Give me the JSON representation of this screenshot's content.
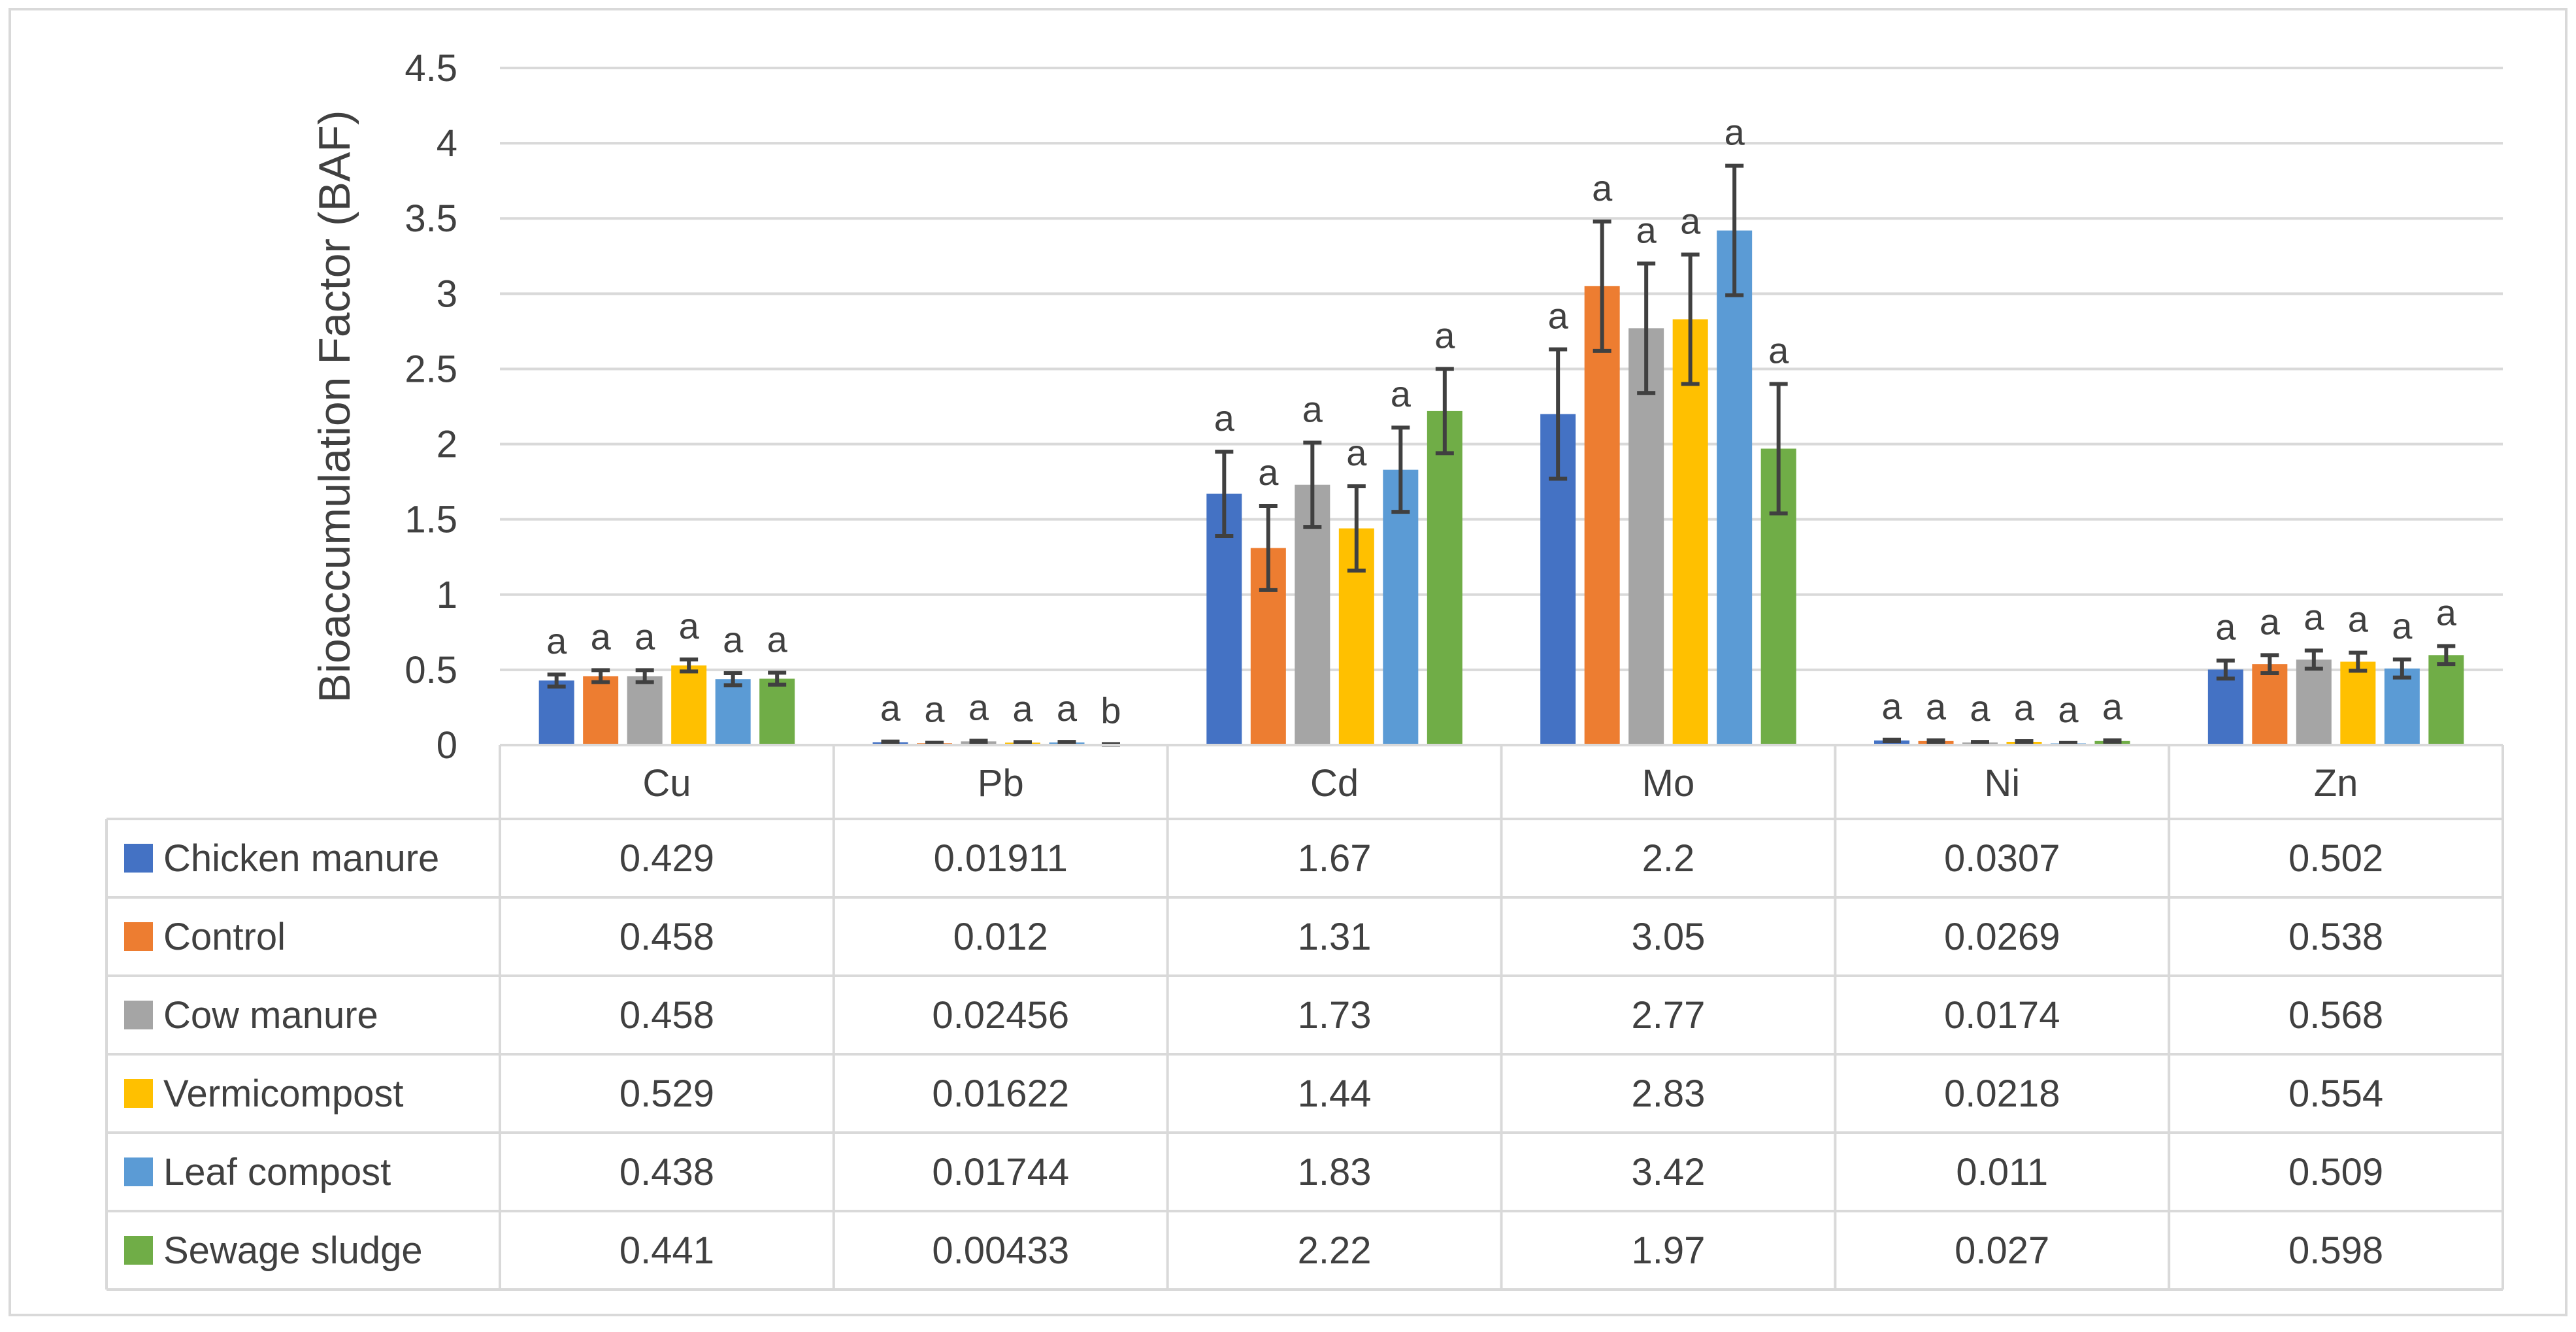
{
  "chart_data": {
    "type": "bar",
    "ylabel": "Bioaccumulation Factor (BAF)",
    "ylim": [
      0,
      4.5
    ],
    "yticks": [
      "0",
      "0.5",
      "1",
      "1.5",
      "2",
      "2.5",
      "3",
      "3.5",
      "4",
      "4.5"
    ],
    "grid": true,
    "legend_position": "bottom-data-table",
    "categories": [
      "Cu",
      "Pb",
      "Cd",
      "Mo",
      "Ni",
      "Zn"
    ],
    "series": [
      {
        "name": "Chicken manure",
        "color": "#4472C4",
        "values": [
          0.429,
          0.01911,
          1.67,
          2.2,
          0.0307,
          0.502
        ],
        "display": [
          "0.429",
          "0.01911",
          "1.67",
          "2.2",
          "0.0307",
          "0.502"
        ],
        "errors": [
          0.04,
          0.004,
          0.28,
          0.43,
          0.005,
          0.06
        ],
        "letters": [
          "a",
          "a",
          "a",
          "a",
          "a",
          "a"
        ]
      },
      {
        "name": "Control",
        "color": "#ED7D31",
        "values": [
          0.458,
          0.012,
          1.31,
          3.05,
          0.0269,
          0.538
        ],
        "display": [
          "0.458",
          "0.012",
          "1.31",
          "3.05",
          "0.0269",
          "0.538"
        ],
        "errors": [
          0.04,
          0.003,
          0.28,
          0.43,
          0.005,
          0.06
        ],
        "letters": [
          "a",
          "a",
          "a",
          "a",
          "a",
          "a"
        ]
      },
      {
        "name": "Cow manure",
        "color": "#A5A5A5",
        "values": [
          0.458,
          0.02456,
          1.73,
          2.77,
          0.0174,
          0.568
        ],
        "display": [
          "0.458",
          "0.02456",
          "1.73",
          "2.77",
          "0.0174",
          "0.568"
        ],
        "errors": [
          0.04,
          0.004,
          0.28,
          0.43,
          0.004,
          0.06
        ],
        "letters": [
          "a",
          "a",
          "a",
          "a",
          "a",
          "a"
        ]
      },
      {
        "name": "Vermicompost",
        "color": "#FFC000",
        "values": [
          0.529,
          0.01622,
          1.44,
          2.83,
          0.0218,
          0.554
        ],
        "display": [
          "0.529",
          "0.01622",
          "1.44",
          "2.83",
          "0.0218",
          "0.554"
        ],
        "errors": [
          0.04,
          0.004,
          0.28,
          0.43,
          0.004,
          0.06
        ],
        "letters": [
          "a",
          "a",
          "a",
          "a",
          "a",
          "a"
        ]
      },
      {
        "name": "Leaf compost",
        "color": "#5B9BD5",
        "values": [
          0.438,
          0.01744,
          1.83,
          3.42,
          0.011,
          0.509
        ],
        "display": [
          "0.438",
          "0.01744",
          "1.83",
          "3.42",
          "0.011",
          "0.509"
        ],
        "errors": [
          0.04,
          0.004,
          0.28,
          0.43,
          0.003,
          0.06
        ],
        "letters": [
          "a",
          "a",
          "a",
          "a",
          "a",
          "a"
        ]
      },
      {
        "name": "Sewage sludge",
        "color": "#70AD47",
        "values": [
          0.441,
          0.00433,
          2.22,
          1.97,
          0.027,
          0.598
        ],
        "display": [
          "0.441",
          "0.00433",
          "2.22",
          "1.97",
          "0.027",
          "0.598"
        ],
        "errors": [
          0.04,
          0.002,
          0.28,
          0.43,
          0.005,
          0.06
        ],
        "letters": [
          "a",
          "b",
          "a",
          "a",
          "a",
          "a"
        ]
      }
    ]
  }
}
